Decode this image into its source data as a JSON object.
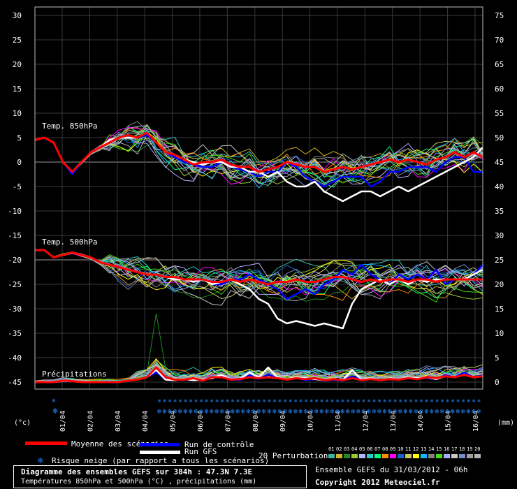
{
  "chart_data": {
    "type": "line",
    "days": [
      "01/04",
      "02/04",
      "03/04",
      "04/04",
      "05/04",
      "06/04",
      "07/04",
      "08/04",
      "09/04",
      "10/04",
      "11/04",
      "12/04",
      "13/04",
      "14/04",
      "15/04",
      "16/04"
    ],
    "left_axis": {
      "unit": "(°c)",
      "ticks": [
        30,
        25,
        20,
        15,
        10,
        5,
        0,
        -5,
        -10,
        -15,
        -20,
        -25,
        -30,
        -35,
        -40,
        -45
      ]
    },
    "right_axis": {
      "unit": "(mm)",
      "ticks": [
        75,
        70,
        65,
        60,
        55,
        50,
        45,
        40,
        35,
        30,
        25,
        20,
        15,
        10,
        5,
        0
      ]
    },
    "panels": [
      {
        "label": "Temp. 850hPa",
        "axis": "left"
      },
      {
        "label": "Temp. 500hPa",
        "axis": "left"
      },
      {
        "label": "Précipitations",
        "axis": "right"
      }
    ],
    "series": [
      {
        "name": "Moyenne des scénarios",
        "t850": [
          4.5,
          5,
          4,
          0,
          -2,
          0,
          2,
          3,
          4,
          5,
          5.5,
          5,
          6,
          4,
          2,
          1.5,
          0.5,
          -0.5,
          0,
          0,
          0.5,
          -0.5,
          -1,
          -1,
          -2,
          -1.5,
          -1,
          0,
          -0.5,
          -1,
          -1,
          -2,
          -1.5,
          -1,
          -1.5,
          -1,
          -0.5,
          0,
          0.5,
          0,
          0.5,
          0,
          -0.5,
          0.5,
          1,
          2,
          1,
          2,
          1
        ],
        "t500": [
          -18,
          -18,
          -19.5,
          -19,
          -18.5,
          -19,
          -19.5,
          -20.5,
          -21,
          -21.5,
          -22,
          -22.5,
          -23,
          -23,
          -23.5,
          -23.5,
          -24,
          -24,
          -24,
          -24.5,
          -24.5,
          -24,
          -24.5,
          -24,
          -24.5,
          -25,
          -24.5,
          -24.5,
          -24,
          -24.5,
          -24.5,
          -24,
          -23.5,
          -23.5,
          -24,
          -24.5,
          -24,
          -24.5,
          -24,
          -24,
          -24.5,
          -24,
          -24,
          -24.5,
          -24,
          -24,
          -24,
          -24,
          -24
        ],
        "precip": [
          0,
          0,
          0,
          0.3,
          0.2,
          0,
          0,
          0,
          0,
          0,
          0.3,
          0.5,
          1,
          3,
          1,
          0.5,
          0.5,
          0.8,
          0.3,
          1,
          1,
          0.5,
          0.6,
          1,
          0.8,
          1,
          0.8,
          0.5,
          0.8,
          0.6,
          0.8,
          0.4,
          0.6,
          0.4,
          0.8,
          0.4,
          0.6,
          0.4,
          0.6,
          0.5,
          0.8,
          0.6,
          1,
          0.8,
          1.2,
          1,
          1.5,
          1,
          1.2
        ]
      },
      {
        "name": "Run de contrôle",
        "t850": [
          4.5,
          5,
          4,
          0,
          -2.5,
          0,
          2,
          3,
          4.5,
          5,
          5,
          5,
          5.5,
          4,
          2,
          1,
          0,
          -0.5,
          -1,
          -1,
          0,
          -1,
          -1.5,
          -2,
          -3,
          -2,
          -2,
          0,
          -1,
          -3,
          -4,
          -5,
          -4,
          -3,
          -3,
          -3,
          -5,
          -4,
          -2,
          -2,
          -1,
          -1,
          -1,
          -2,
          0,
          1,
          1,
          -2,
          -2
        ],
        "t500": [
          -18,
          -18,
          -19.5,
          -19,
          -18.5,
          -19,
          -19.5,
          -20.5,
          -21,
          -21.5,
          -22,
          -22.5,
          -23,
          -23,
          -23.5,
          -24,
          -24,
          -24.5,
          -24,
          -25,
          -25,
          -24,
          -24,
          -23,
          -24,
          -25,
          -26,
          -28,
          -27,
          -26,
          -27,
          -25,
          -24,
          -22,
          -23,
          -21,
          -23,
          -24,
          -25,
          -23,
          -24,
          -23,
          -24,
          -22,
          -25,
          -24,
          -24,
          -23,
          -21
        ],
        "precip": [
          0,
          0,
          0,
          0.2,
          0.2,
          0,
          0,
          0,
          0,
          0,
          0.3,
          0.5,
          1,
          2,
          0.5,
          0.4,
          0.6,
          0.4,
          0.5,
          0.8,
          1.2,
          0.5,
          0.4,
          1.4,
          0.6,
          1.6,
          0.8,
          0.5,
          0.8,
          0.4,
          0.6,
          0.3,
          0.5,
          0.3,
          1.2,
          0.4,
          0.8,
          0.4,
          0.6,
          0.5,
          1,
          0.8,
          0.8,
          0.6,
          1.4,
          1,
          2,
          1,
          1.4
        ]
      },
      {
        "name": "Run GFS",
        "t850": [
          4.5,
          5,
          4,
          0,
          -2,
          0,
          2,
          3,
          4.5,
          5,
          5,
          5,
          6,
          4,
          2,
          1.5,
          0.5,
          0,
          -0.5,
          0,
          0,
          -1,
          -1,
          -2,
          -2,
          -3,
          -2,
          -4,
          -5,
          -5,
          -4,
          -6,
          -7,
          -8,
          -7,
          -6,
          -6,
          -7,
          -6,
          -5,
          -6,
          -5,
          -4,
          -3,
          -2,
          -1,
          0,
          1,
          3
        ],
        "t500": [
          -18,
          -18,
          -19.5,
          -19,
          -18.5,
          -19,
          -19.5,
          -20.5,
          -21,
          -21.5,
          -22,
          -22.5,
          -23,
          -23,
          -23.5,
          -24,
          -24,
          -24.5,
          -24,
          -25,
          -24.5,
          -24,
          -25,
          -26,
          -28,
          -29,
          -32,
          -33,
          -32.5,
          -33,
          -33.5,
          -33,
          -33.5,
          -34,
          -29,
          -26,
          -25,
          -24,
          -25,
          -24,
          -25,
          -24,
          -24.5,
          -24,
          -24,
          -24,
          -24,
          -23,
          -22
        ],
        "precip": [
          0,
          0,
          0,
          0.2,
          0.2,
          0,
          0,
          0,
          0,
          0,
          0.3,
          0.5,
          1,
          2.5,
          0.5,
          0.4,
          0.6,
          0.4,
          0.5,
          0.8,
          1.5,
          0.5,
          0.6,
          2,
          1,
          3,
          1,
          0.5,
          1,
          0.8,
          0.6,
          0.4,
          0.6,
          0.4,
          2.5,
          0.5,
          0.8,
          0.4,
          0.6,
          0.5,
          1,
          0.8,
          1,
          0.6,
          1.2,
          1,
          1.5,
          1,
          1.2
        ]
      }
    ]
  },
  "legend": {
    "mean": "Moyenne des scénarios",
    "control": "Run de contrôle",
    "gfs": "Run GFS",
    "perturbations": "20 Perturbations",
    "snow_risk": "Risque neige (par rapport a tous les scénarios)",
    "pert_numbers": [
      "01",
      "02",
      "03",
      "04",
      "05",
      "06",
      "07",
      "08",
      "09",
      "10",
      "11",
      "12",
      "13",
      "14",
      "15",
      "16",
      "17",
      "18",
      "19",
      "20"
    ]
  },
  "colors": {
    "mean": "#ff0000",
    "control": "#0000ff",
    "gfs": "#ffffff",
    "snow": "#2288ff",
    "grid": "#3a3a3a",
    "perturbations": [
      "#3cb4a0",
      "#d2b428",
      "#1e8c1e",
      "#96c832",
      "#b4b4ff",
      "#32c8c8",
      "#00ff80",
      "#ff8c00",
      "#ff00ff",
      "#1464c8",
      "#c8c864",
      "#ffff00",
      "#14b4ff",
      "#808080",
      "#46dc14",
      "#aaaaff",
      "#c8c8c8",
      "#788cc8",
      "#a0a0a0",
      "#b4b4b4"
    ]
  },
  "footer": {
    "title": "Diagramme des ensembles GEFS sur 384h : 47.3N 7.3E",
    "subtitle": "Températures 850hPa et 500hPa (°C) , précipitations (mm)",
    "run": "Ensemble GEFS du 31/03/2012 - 06h",
    "copyright": "Copyright 2012 Meteociel.fr"
  }
}
